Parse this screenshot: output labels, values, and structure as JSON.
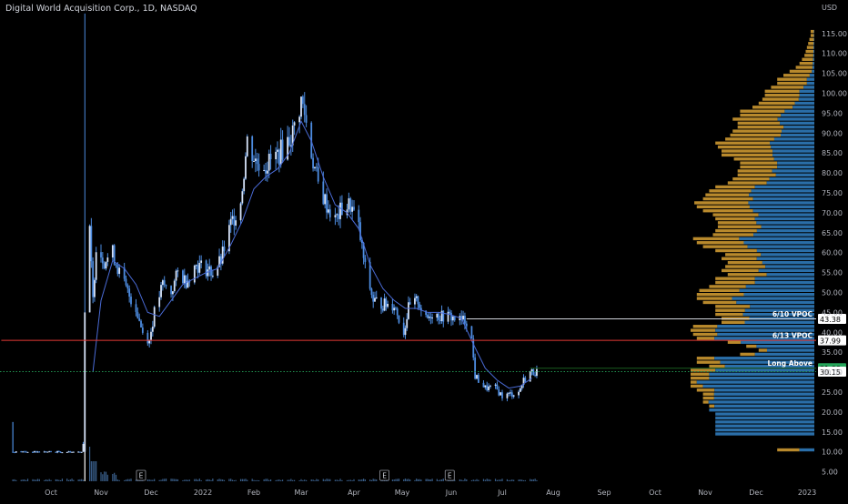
{
  "header": {
    "title": "Digital World Acquisition Corp., 1D, NASDAQ"
  },
  "chart_data": {
    "type": "candlestick",
    "currency": "USD",
    "ylim": [
      0,
      120
    ],
    "y_ticks": [
      5,
      10,
      15,
      20,
      25,
      30,
      35,
      40,
      45,
      50,
      55,
      60,
      65,
      70,
      75,
      80,
      85,
      90,
      95,
      100,
      105,
      110,
      115
    ],
    "y_tick_labels": [
      "5.00",
      "10.00",
      "15.00",
      "20.00",
      "25.00",
      "30.00",
      "35.00",
      "40.00",
      "45.00",
      "50.00",
      "55.00",
      "60.00",
      "65.00",
      "70.00",
      "75.00",
      "80.00",
      "85.00",
      "90.00",
      "95.00",
      "100.00",
      "105.00",
      "110.00",
      "115.00"
    ],
    "x_ticks": [
      "Oct",
      "Nov",
      "Dec",
      "2022",
      "Feb",
      "Mar",
      "Apr",
      "May",
      "Jun",
      "Jul",
      "Aug",
      "Sep",
      "Oct",
      "Nov",
      "Dec",
      "2023"
    ],
    "price_path": [
      [
        "2021-09-08",
        10.0
      ],
      [
        "2021-10-21",
        10.0
      ],
      [
        "2021-10-22",
        94.0
      ],
      [
        "2021-10-25",
        65.0
      ],
      [
        "2021-10-27",
        48.0
      ],
      [
        "2021-10-29",
        62.0
      ],
      [
        "2021-11-03",
        58.0
      ],
      [
        "2021-11-08",
        60.0
      ],
      [
        "2021-11-12",
        55.0
      ],
      [
        "2021-11-17",
        50.0
      ],
      [
        "2021-11-22",
        46.0
      ],
      [
        "2021-11-26",
        40.0
      ],
      [
        "2021-11-30",
        38.0
      ],
      [
        "2021-12-03",
        45.0
      ],
      [
        "2021-12-08",
        52.0
      ],
      [
        "2021-12-13",
        50.0
      ],
      [
        "2021-12-17",
        55.0
      ],
      [
        "2021-12-22",
        53.0
      ],
      [
        "2021-12-28",
        57.0
      ],
      [
        "2022-01-03",
        56.0
      ],
      [
        "2022-01-07",
        55.0
      ],
      [
        "2022-01-12",
        58.0
      ],
      [
        "2022-01-18",
        67.0
      ],
      [
        "2022-01-24",
        73.0
      ],
      [
        "2022-01-28",
        88.0
      ],
      [
        "2022-02-02",
        83.0
      ],
      [
        "2022-02-08",
        82.0
      ],
      [
        "2022-02-14",
        84.0
      ],
      [
        "2022-02-18",
        86.0
      ],
      [
        "2022-02-24",
        90.0
      ],
      [
        "2022-03-01",
        98.0
      ],
      [
        "2022-03-03",
        95.0
      ],
      [
        "2022-03-07",
        85.0
      ],
      [
        "2022-03-11",
        77.0
      ],
      [
        "2022-03-16",
        72.0
      ],
      [
        "2022-03-21",
        68.0
      ],
      [
        "2022-03-25",
        71.0
      ],
      [
        "2022-03-30",
        72.0
      ],
      [
        "2022-04-04",
        66.0
      ],
      [
        "2022-04-08",
        56.0
      ],
      [
        "2022-04-13",
        48.0
      ],
      [
        "2022-04-19",
        47.0
      ],
      [
        "2022-04-26",
        47.0
      ],
      [
        "2022-05-02",
        40.0
      ],
      [
        "2022-05-05",
        46.0
      ],
      [
        "2022-05-11",
        48.0
      ],
      [
        "2022-05-16",
        43.0
      ],
      [
        "2022-05-20",
        45.0
      ],
      [
        "2022-05-25",
        44.0
      ],
      [
        "2022-05-31",
        44.0
      ],
      [
        "2022-06-06",
        43.0
      ],
      [
        "2022-06-10",
        43.0
      ],
      [
        "2022-06-13",
        38.0
      ],
      [
        "2022-06-15",
        29.0
      ],
      [
        "2022-06-21",
        26.0
      ],
      [
        "2022-06-27",
        26.0
      ],
      [
        "2022-07-01",
        24.0
      ],
      [
        "2022-07-06",
        24.5
      ],
      [
        "2022-07-11",
        25.0
      ],
      [
        "2022-07-14",
        28.0
      ],
      [
        "2022-07-18",
        30.0
      ],
      [
        "2022-07-22",
        30.15
      ]
    ],
    "moving_average": [
      [
        "2021-10-27",
        30.0
      ],
      [
        "2021-11-01",
        48.0
      ],
      [
        "2021-11-08",
        58.0
      ],
      [
        "2021-11-15",
        56.0
      ],
      [
        "2021-11-22",
        52.0
      ],
      [
        "2021-11-29",
        45.0
      ],
      [
        "2021-12-06",
        44.0
      ],
      [
        "2021-12-13",
        48.0
      ],
      [
        "2021-12-20",
        52.0
      ],
      [
        "2022-01-03",
        55.0
      ],
      [
        "2022-01-10",
        56.0
      ],
      [
        "2022-01-18",
        62.0
      ],
      [
        "2022-01-25",
        68.0
      ],
      [
        "2022-02-01",
        76.0
      ],
      [
        "2022-02-08",
        79.0
      ],
      [
        "2022-02-15",
        81.0
      ],
      [
        "2022-02-22",
        85.0
      ],
      [
        "2022-03-01",
        93.0
      ],
      [
        "2022-03-07",
        88.0
      ],
      [
        "2022-03-14",
        79.0
      ],
      [
        "2022-03-21",
        72.0
      ],
      [
        "2022-03-28",
        70.0
      ],
      [
        "2022-04-04",
        66.0
      ],
      [
        "2022-04-11",
        57.0
      ],
      [
        "2022-04-19",
        51.0
      ],
      [
        "2022-04-26",
        48.0
      ],
      [
        "2022-05-03",
        46.0
      ],
      [
        "2022-05-10",
        46.0
      ],
      [
        "2022-05-17",
        45.0
      ],
      [
        "2022-05-24",
        45.0
      ],
      [
        "2022-05-31",
        44.5
      ],
      [
        "2022-06-07",
        43.5
      ],
      [
        "2022-06-14",
        37.0
      ],
      [
        "2022-06-21",
        31.0
      ],
      [
        "2022-06-28",
        28.0
      ],
      [
        "2022-07-05",
        26.0
      ],
      [
        "2022-07-12",
        26.5
      ],
      [
        "2022-07-19",
        28.5
      ]
    ],
    "volume_profile": {
      "bin_size": 1,
      "bins_from_low": 10,
      "total": [
        0.3,
        0,
        0,
        0,
        0.8,
        0.8,
        0.8,
        0.8,
        0.8,
        0.8,
        0.85,
        0.85,
        0.9,
        0.9,
        0.9,
        0.95,
        1.0,
        1.0,
        1.0,
        1.0,
        1.0,
        0.85,
        0.95,
        0.95,
        0.6,
        0.45,
        0.55,
        0.7,
        0.95,
        0.98,
        1.0,
        0.98,
        0.75,
        0.75,
        0.8,
        0.8,
        0.8,
        0.9,
        0.95,
        0.95,
        0.93,
        0.85,
        0.8,
        0.8,
        0.7,
        0.75,
        0.72,
        0.7,
        0.75,
        0.72,
        0.8,
        0.9,
        0.95,
        0.98,
        0.82,
        0.8,
        0.78,
        0.78,
        0.8,
        0.82,
        0.9,
        0.95,
        0.97,
        0.9,
        0.88,
        0.85,
        0.8,
        0.7,
        0.66,
        0.62,
        0.62,
        0.6,
        0.6,
        0.65,
        0.75,
        0.75,
        0.78,
        0.8,
        0.72,
        0.68,
        0.66,
        0.62,
        0.62,
        0.66,
        0.6,
        0.6,
        0.5,
        0.45,
        0.42,
        0.4,
        0.4,
        0.35,
        0.3,
        0.3,
        0.25,
        0.2,
        0.15,
        0.12,
        0.1,
        0.08,
        0.07,
        0.06,
        0.05,
        0.04,
        0.03,
        0.03
      ],
      "up_fraction": [
        0.4,
        0,
        0,
        0,
        1.0,
        1.0,
        1.0,
        1.0,
        1.0,
        1.0,
        1.0,
        0.95,
        0.95,
        0.9,
        0.9,
        0.85,
        0.9,
        0.95,
        0.85,
        0.85,
        0.8,
        0.85,
        0.8,
        0.85,
        0.8,
        0.85,
        0.85,
        0.85,
        0.85,
        0.8,
        0.8,
        0.8,
        0.75,
        0.7,
        0.72,
        0.7,
        0.65,
        0.7,
        0.7,
        0.6,
        0.65,
        0.65,
        0.6,
        0.6,
        0.55,
        0.6,
        0.55,
        0.6,
        0.62,
        0.6,
        0.58,
        0.6,
        0.6,
        0.62,
        0.6,
        0.58,
        0.55,
        0.6,
        0.6,
        0.55,
        0.55,
        0.55,
        0.55,
        0.55,
        0.6,
        0.6,
        0.6,
        0.55,
        0.55,
        0.5,
        0.55,
        0.5,
        0.5,
        0.5,
        0.45,
        0.45,
        0.45,
        0.45,
        0.45,
        0.4,
        0.4,
        0.4,
        0.45,
        0.45,
        0.45,
        0.4,
        0.35,
        0.35,
        0.3,
        0.3,
        0.3,
        0.25,
        0.2,
        0.2,
        0.15,
        0.1,
        0.1,
        0.1,
        0.1,
        0.1,
        0.1,
        0.1,
        0.1,
        0.1,
        0.1,
        0.1
      ]
    },
    "horizontal_levels": [
      {
        "name": "6/10 VPOC",
        "value": 43.38,
        "label": "43.38",
        "line_color": "#d1d4dc",
        "label_bg": "#ffffff",
        "label_fg": "#000000",
        "from_date": "2022-06-10"
      },
      {
        "name": "6/13 VPOC",
        "value": 37.99,
        "label": "37.99",
        "line_color": "#e53935",
        "label_bg": "#ffffff",
        "label_fg": "#000000",
        "from_date": "2021-09-01"
      },
      {
        "name": "Long Above",
        "value": 31.0,
        "label": "31.00",
        "line_color": "#1b5e20",
        "label_bg": "#26a65b",
        "label_fg": "#000000",
        "from_date": "2022-07-18"
      }
    ],
    "last_price": {
      "value": 30.15,
      "label": "30.15",
      "label_bg": "#ffffff",
      "label_fg": "#000000"
    },
    "earnings_markers": [
      {
        "date": "2021-11-25",
        "label": "E"
      },
      {
        "date": "2022-04-20",
        "label": "E"
      },
      {
        "date": "2022-05-31",
        "label": "E"
      }
    ],
    "colors": {
      "background": "#000000",
      "candle": "#4d8ce0",
      "candle_light": "#d6e3f8",
      "moving_average": "#4a6bd6",
      "profile_up": "#2a6ea8",
      "profile_down": "#b8892c",
      "axis_text": "#b2b5be",
      "volume": "#3a5f8a"
    }
  }
}
